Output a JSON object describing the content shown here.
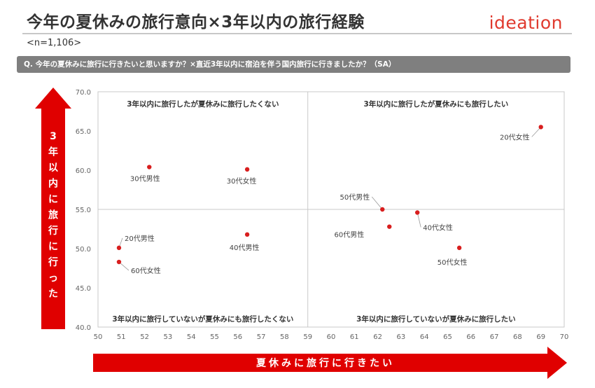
{
  "header": {
    "title": "今年の夏休みの旅行意向×3年以内の旅行経験",
    "logo_text": "ideation",
    "sample_size": "<n=1,106>",
    "question": "Q. 今年の夏休みに旅行に行きたいと思いますか？×直近3年以内に宿泊を伴う国内旅行に行きましたか？（SA）"
  },
  "colors": {
    "accent": "#e00000",
    "marker": "#d81e1e",
    "grid": "#c9c9c9",
    "question_bar": "#7f7f7f"
  },
  "chart_data": {
    "type": "scatter",
    "xlabel": "夏休みに旅行に行きたい",
    "ylabel": "3年以内に旅行に行った",
    "xlim": [
      50,
      70
    ],
    "ylim": [
      40,
      70
    ],
    "x_ticks": [
      50,
      51,
      52,
      53,
      54,
      55,
      56,
      57,
      58,
      59,
      60,
      61,
      62,
      63,
      64,
      65,
      66,
      67,
      68,
      69,
      70
    ],
    "y_ticks": [
      "70.0",
      "65.0",
      "60.0",
      "55.0",
      "50.0",
      "45.0",
      "40.0"
    ],
    "divider_x": 59,
    "divider_y": 55,
    "quadrants": {
      "top_left": "3年以内に旅行したが夏休みに旅行したくない",
      "top_right": "3年以内に旅行したが夏休みにも旅行したい",
      "bottom_left": "3年以内に旅行していないが夏休みにも旅行したくない",
      "bottom_right": "3年以内に旅行していないが夏休みに旅行したい"
    },
    "points": [
      {
        "label": "20代女性",
        "x": 69.0,
        "y": 65.5
      },
      {
        "label": "30代男性",
        "x": 52.2,
        "y": 60.4
      },
      {
        "label": "30代女性",
        "x": 56.4,
        "y": 60.1
      },
      {
        "label": "50代男性",
        "x": 62.2,
        "y": 55.0
      },
      {
        "label": "40代女性",
        "x": 63.7,
        "y": 54.6
      },
      {
        "label": "60代男性",
        "x": 62.5,
        "y": 52.8
      },
      {
        "label": "40代男性",
        "x": 56.4,
        "y": 51.8
      },
      {
        "label": "20代男性",
        "x": 50.9,
        "y": 50.1
      },
      {
        "label": "50代女性",
        "x": 65.5,
        "y": 50.1
      },
      {
        "label": "60代女性",
        "x": 50.9,
        "y": 48.3
      }
    ]
  }
}
